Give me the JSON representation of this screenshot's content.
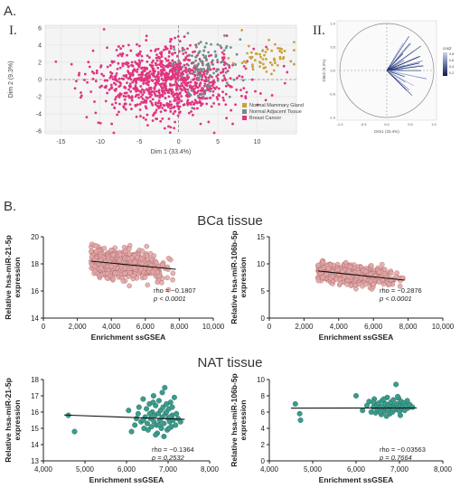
{
  "labels": {
    "panel_a": "A.",
    "panel_b": "B.",
    "sub_i": "I.",
    "sub_ii": "II.",
    "bca_title": "BCa tissue",
    "nat_title": "NAT tissue"
  },
  "colors": {
    "normal_mammary": "#c9a23a",
    "normal_adjacent": "#6f8f8a",
    "breast_cancer": "#e0357f",
    "bca_point": "#e3a6a6",
    "bca_point_stroke": "#a76a6a",
    "nat_point": "#3b9c8c",
    "nat_point_stroke": "#1f6257",
    "arrow": "#3a4a8a"
  },
  "chart_data": [
    {
      "id": "pca-individuals",
      "type": "scatter",
      "title": "",
      "xlabel": "Dim 1 (33.4%)",
      "ylabel": "Dim 2 (9.3%)",
      "xlim": [
        -17,
        15
      ],
      "ylim": [
        -6.3,
        6.3
      ],
      "xticks": [
        -15,
        -10,
        -5,
        0,
        5,
        10
      ],
      "yticks": [
        -6,
        -4,
        -2,
        0,
        2,
        4,
        6
      ],
      "legend": {
        "position": "bottom-right",
        "entries": [
          "Normal Mammary Gland",
          "Normal Adjacent Tissue",
          "Breast Cancer"
        ]
      },
      "series": [
        {
          "name": "Normal Mammary Gland",
          "center": [
            11,
            2.6
          ],
          "spread": [
            2.2,
            1.0
          ],
          "n": 60
        },
        {
          "name": "Normal Adjacent Tissue",
          "center": [
            2.8,
            1.5
          ],
          "spread": [
            2.0,
            1.6
          ],
          "n": 110
        },
        {
          "name": "Breast Cancer",
          "center": [
            -1.5,
            -0.3
          ],
          "spread": [
            4.5,
            2.0
          ],
          "n": 1000
        }
      ]
    },
    {
      "id": "pca-variables",
      "type": "scatter",
      "title": "",
      "xlabel": "Dim1 (33.4%)",
      "ylabel": "Dim2 (9.3%)",
      "xlim": [
        -1.0,
        1.0
      ],
      "ylim": [
        -1.0,
        1.0
      ],
      "xticks": [
        -1.0,
        -0.5,
        0.0,
        0.5,
        1.0
      ],
      "yticks": [
        -1.0,
        -0.5,
        0.0,
        0.5,
        1.0
      ],
      "legend_title": "cos2",
      "legend_ticks": [
        "0.8",
        "0.6",
        "0.4",
        "0.2"
      ]
    },
    {
      "id": "bca-mir21",
      "type": "scatter",
      "title": "",
      "xlabel": "Enrichment ssGSEA",
      "ylabel": "Relative hsa-miR-21-5p expression",
      "xlim": [
        0,
        10000
      ],
      "ylim": [
        14,
        20
      ],
      "xtick_labels": [
        "0",
        "2,000",
        "4,000",
        "6,000",
        "8,000",
        "10,000"
      ],
      "xticks": [
        0,
        2000,
        4000,
        6000,
        8000,
        10000
      ],
      "ytick_labels": [
        "14",
        "16",
        "18",
        "20"
      ],
      "yticks": [
        14,
        16,
        18,
        20
      ],
      "cloud": {
        "x_range": [
          2800,
          7800
        ],
        "y_center": 17.9,
        "y_spread": 0.55,
        "n": 520
      },
      "fit_line": [
        [
          2800,
          18.2
        ],
        [
          7800,
          17.6
        ]
      ],
      "rho_text": "rho = −0.1807",
      "p_text": "p < 0.0001"
    },
    {
      "id": "bca-mir106b",
      "type": "scatter",
      "title": "",
      "xlabel": "Enrichment ssGSEA",
      "ylabel": "Relative hsa-miR-106b-5p expression",
      "xlim": [
        0,
        10000
      ],
      "ylim": [
        0,
        15
      ],
      "xtick_labels": [
        "0",
        "2,000",
        "4,000",
        "6,000",
        "8,000",
        "10,000"
      ],
      "xticks": [
        0,
        2000,
        4000,
        6000,
        8000,
        10000
      ],
      "ytick_labels": [
        "0",
        "5",
        "10",
        "15"
      ],
      "yticks": [
        0,
        5,
        10,
        15
      ],
      "cloud": {
        "x_range": [
          2800,
          7800
        ],
        "y_center": 8.0,
        "y_spread": 0.9,
        "n": 520
      },
      "fit_line": [
        [
          2800,
          8.7
        ],
        [
          7800,
          7.0
        ]
      ],
      "rho_text": "rho = −0.2876",
      "p_text": "p < 0.0001"
    },
    {
      "id": "nat-mir21",
      "type": "scatter",
      "title": "",
      "xlabel": "Enrichment ssGSEA",
      "ylabel": "Relative hsa-miR-21-5p expression",
      "xlim": [
        4000,
        8000
      ],
      "ylim": [
        13,
        18
      ],
      "xtick_labels": [
        "4,000",
        "5,000",
        "6,000",
        "7,000",
        "8,000"
      ],
      "xticks": [
        4000,
        5000,
        6000,
        7000,
        8000
      ],
      "ytick_labels": [
        "13",
        "14",
        "15",
        "16",
        "17",
        "18"
      ],
      "yticks": [
        13,
        14,
        15,
        16,
        17,
        18
      ],
      "points": [
        [
          4600,
          15.8
        ],
        [
          4750,
          14.8
        ],
        [
          6050,
          16.1
        ],
        [
          6120,
          14.8
        ],
        [
          6200,
          15.2
        ],
        [
          6280,
          15.9
        ],
        [
          6300,
          16.3
        ],
        [
          6350,
          15.4
        ],
        [
          6400,
          16.8
        ],
        [
          6420,
          15.0
        ],
        [
          6450,
          15.7
        ],
        [
          6480,
          16.2
        ],
        [
          6500,
          15.3
        ],
        [
          6520,
          14.9
        ],
        [
          6550,
          16.5
        ],
        [
          6580,
          15.6
        ],
        [
          6600,
          15.1
        ],
        [
          6620,
          16.0
        ],
        [
          6650,
          17.0
        ],
        [
          6660,
          15.4
        ],
        [
          6680,
          15.8
        ],
        [
          6700,
          16.4
        ],
        [
          6720,
          15.2
        ],
        [
          6740,
          14.7
        ],
        [
          6760,
          15.9
        ],
        [
          6780,
          16.7
        ],
        [
          6800,
          15.5
        ],
        [
          6820,
          16.1
        ],
        [
          6840,
          15.0
        ],
        [
          6860,
          15.7
        ],
        [
          6880,
          16.3
        ],
        [
          6900,
          15.3
        ],
        [
          6920,
          17.5
        ],
        [
          6940,
          15.9
        ],
        [
          6960,
          16.0
        ],
        [
          6980,
          14.9
        ],
        [
          7000,
          15.6
        ],
        [
          7020,
          16.2
        ],
        [
          7040,
          15.4
        ],
        [
          7060,
          16.6
        ],
        [
          7080,
          15.1
        ],
        [
          7100,
          15.8
        ],
        [
          7120,
          15.5
        ],
        [
          7150,
          16.9
        ],
        [
          7180,
          15.2
        ],
        [
          7200,
          15.9
        ],
        [
          7240,
          15.6
        ],
        [
          7300,
          15.4
        ],
        [
          6560,
          15.9
        ],
        [
          6640,
          16.6
        ],
        [
          6860,
          17.2
        ],
        [
          7020,
          15.0
        ],
        [
          6400,
          15.5
        ],
        [
          6700,
          14.6
        ],
        [
          6960,
          16.5
        ],
        [
          7100,
          16.3
        ],
        [
          6780,
          15.2
        ],
        [
          6240,
          15.6
        ],
        [
          6900,
          14.5
        ],
        [
          7050,
          15.7
        ]
      ],
      "fit_line": [
        [
          4500,
          15.82
        ],
        [
          7400,
          15.55
        ]
      ],
      "rho_text": "rho = −0.1364",
      "p_text": "p = 0.2532"
    },
    {
      "id": "nat-mir106b",
      "type": "scatter",
      "title": "",
      "xlabel": "Enrichment ssGSEA",
      "ylabel": "Relative hsa-miR-106b-5p expression",
      "xlim": [
        4000,
        8000
      ],
      "ylim": [
        0,
        10
      ],
      "xtick_labels": [
        "4,000",
        "5,000",
        "6,000",
        "7,000",
        "8,000"
      ],
      "xticks": [
        4000,
        5000,
        6000,
        7000,
        8000
      ],
      "ytick_labels": [
        "0",
        "2",
        "4",
        "6",
        "8",
        "10"
      ],
      "yticks": [
        0,
        2,
        4,
        6,
        8,
        10
      ],
      "points": [
        [
          4600,
          7.0
        ],
        [
          4700,
          5.8
        ],
        [
          4720,
          5.0
        ],
        [
          6000,
          8.0
        ],
        [
          6150,
          6.2
        ],
        [
          6250,
          6.8
        ],
        [
          6300,
          7.3
        ],
        [
          6350,
          6.0
        ],
        [
          6400,
          6.6
        ],
        [
          6420,
          7.6
        ],
        [
          6450,
          5.9
        ],
        [
          6480,
          6.9
        ],
        [
          6500,
          6.3
        ],
        [
          6520,
          7.1
        ],
        [
          6550,
          6.5
        ],
        [
          6580,
          5.7
        ],
        [
          6600,
          7.4
        ],
        [
          6620,
          6.7
        ],
        [
          6650,
          6.1
        ],
        [
          6680,
          7.0
        ],
        [
          6700,
          6.4
        ],
        [
          6720,
          7.8
        ],
        [
          6740,
          6.2
        ],
        [
          6760,
          6.9
        ],
        [
          6780,
          5.8
        ],
        [
          6800,
          7.2
        ],
        [
          6820,
          6.6
        ],
        [
          6840,
          6.0
        ],
        [
          6860,
          7.5
        ],
        [
          6880,
          6.8
        ],
        [
          6900,
          6.3
        ],
        [
          6920,
          9.4
        ],
        [
          6940,
          7.0
        ],
        [
          6960,
          6.5
        ],
        [
          6980,
          7.7
        ],
        [
          7000,
          6.1
        ],
        [
          7020,
          6.9
        ],
        [
          7040,
          7.3
        ],
        [
          7060,
          6.4
        ],
        [
          7080,
          6.7
        ],
        [
          7100,
          7.1
        ],
        [
          7120,
          6.2
        ],
        [
          7150,
          6.8
        ],
        [
          7180,
          7.4
        ],
        [
          7200,
          6.5
        ],
        [
          7240,
          6.9
        ],
        [
          7300,
          6.6
        ],
        [
          6560,
          6.0
        ],
        [
          6640,
          7.6
        ],
        [
          6860,
          6.4
        ],
        [
          7020,
          5.6
        ],
        [
          6400,
          7.2
        ],
        [
          6700,
          5.5
        ],
        [
          6960,
          7.9
        ]
      ],
      "fit_line": [
        [
          4500,
          6.48
        ],
        [
          7400,
          6.5
        ]
      ],
      "rho_text": "rho = −0.03563",
      "p_text": "p = 0.7664"
    }
  ]
}
